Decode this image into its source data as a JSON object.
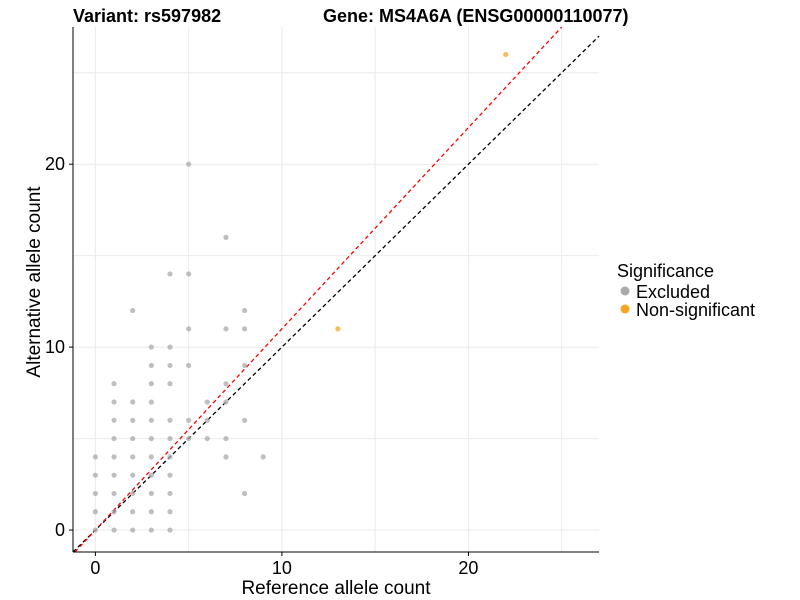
{
  "chart_data": {
    "type": "scatter",
    "title_left": "Variant: rs597982",
    "title_right": "Gene: MS4A6A (ENSG00000110077)",
    "xlabel": "Reference allele count",
    "ylabel": "Alternative allele count",
    "xlim": [
      -1.2,
      27
    ],
    "ylim": [
      -1.2,
      27.5
    ],
    "x_ticks": [
      0,
      10,
      20
    ],
    "y_ticks": [
      0,
      10,
      20
    ],
    "grid": true,
    "legend": {
      "title": "Significance",
      "position": "right",
      "entries": [
        {
          "label": "Excluded",
          "color": "#aaaaaa"
        },
        {
          "label": "Non-significant",
          "color": "#f5a623"
        }
      ]
    },
    "reference_lines": [
      {
        "slope": 1,
        "intercept": 0,
        "color": "#000000",
        "style": "dashed"
      },
      {
        "slope": 1.1,
        "intercept": 0,
        "color": "#ff0000",
        "style": "dashed"
      }
    ],
    "series": [
      {
        "name": "Excluded",
        "color": "#aaaaaa",
        "points": [
          [
            0,
            0
          ],
          [
            0,
            1
          ],
          [
            0,
            2
          ],
          [
            0,
            3
          ],
          [
            0,
            4
          ],
          [
            1,
            0
          ],
          [
            1,
            1
          ],
          [
            1,
            2
          ],
          [
            1,
            3
          ],
          [
            1,
            4
          ],
          [
            1,
            5
          ],
          [
            1,
            6
          ],
          [
            1,
            7
          ],
          [
            1,
            8
          ],
          [
            2,
            0
          ],
          [
            2,
            1
          ],
          [
            2,
            2
          ],
          [
            2,
            3
          ],
          [
            2,
            4
          ],
          [
            2,
            5
          ],
          [
            2,
            6
          ],
          [
            2,
            7
          ],
          [
            2,
            12
          ],
          [
            3,
            0
          ],
          [
            3,
            1
          ],
          [
            3,
            2
          ],
          [
            3,
            3
          ],
          [
            3,
            4
          ],
          [
            3,
            5
          ],
          [
            3,
            6
          ],
          [
            3,
            7
          ],
          [
            3,
            8
          ],
          [
            3,
            9
          ],
          [
            3,
            10
          ],
          [
            4,
            0
          ],
          [
            4,
            1
          ],
          [
            4,
            2
          ],
          [
            4,
            3
          ],
          [
            4,
            4
          ],
          [
            4,
            5
          ],
          [
            4,
            6
          ],
          [
            4,
            8
          ],
          [
            4,
            9
          ],
          [
            4,
            10
          ],
          [
            4,
            14
          ],
          [
            5,
            5
          ],
          [
            5,
            6
          ],
          [
            5,
            9
          ],
          [
            5,
            11
          ],
          [
            5,
            14
          ],
          [
            5,
            20
          ],
          [
            6,
            5
          ],
          [
            6,
            6
          ],
          [
            6,
            7
          ],
          [
            7,
            4
          ],
          [
            7,
            5
          ],
          [
            7,
            7
          ],
          [
            7,
            8
          ],
          [
            7,
            11
          ],
          [
            7,
            16
          ],
          [
            8,
            2
          ],
          [
            8,
            6
          ],
          [
            8,
            9
          ],
          [
            8,
            11
          ],
          [
            8,
            12
          ],
          [
            9,
            4
          ]
        ]
      },
      {
        "name": "Non-significant",
        "color": "#f5a623",
        "points": [
          [
            13,
            11
          ],
          [
            22,
            26
          ]
        ]
      }
    ]
  }
}
